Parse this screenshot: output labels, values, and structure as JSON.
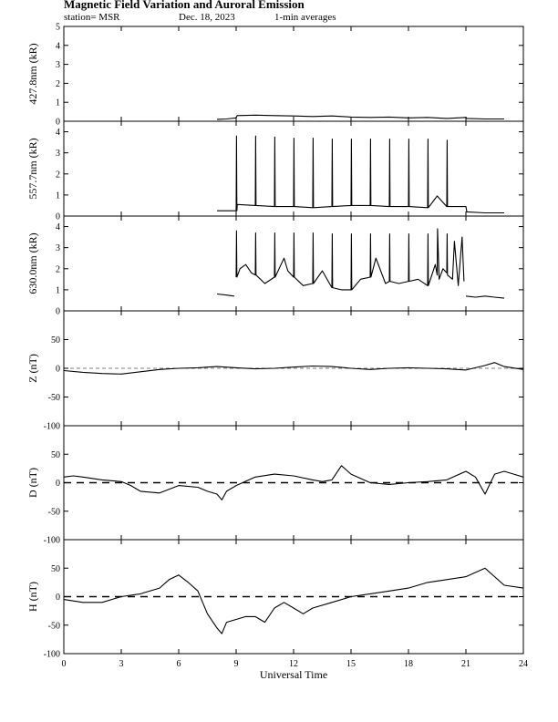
{
  "header": {
    "title": "Magnetic Field Variation and Auroral Emission",
    "station": "station= MSR",
    "date": "Dec. 18, 2023",
    "averaging": "1-min averages"
  },
  "chart_data": [
    {
      "type": "line",
      "id": "p4278",
      "ylabel": "427.8nm (kR)",
      "ylim": [
        0,
        5
      ],
      "yticks": [
        0,
        1,
        2,
        3,
        4,
        5
      ],
      "zero_dashed": false,
      "segments": [
        {
          "x": [
            8.0,
            8.5,
            9.0,
            9.05,
            10,
            11,
            12,
            13,
            14,
            15,
            16,
            17,
            18,
            19,
            20,
            21,
            21.05,
            22,
            23.0
          ],
          "y": [
            0.1,
            0.12,
            0.18,
            0.3,
            0.32,
            0.3,
            0.28,
            0.25,
            0.28,
            0.22,
            0.2,
            0.22,
            0.18,
            0.2,
            0.15,
            0.2,
            0.15,
            0.12,
            0.12
          ]
        }
      ]
    },
    {
      "type": "line",
      "id": "p5577",
      "ylabel": "557.7nm (kR)",
      "ylim": [
        0,
        4.5
      ],
      "yticks": [
        0,
        1,
        2,
        3,
        4
      ],
      "zero_dashed": false,
      "segments": [
        {
          "x": [
            8.0,
            8.5,
            9.0,
            9.02,
            9.04,
            9.06,
            10,
            10.02,
            10.04,
            11,
            11.02,
            11.04,
            12,
            12.02,
            12.04,
            13,
            13.02,
            13.04,
            14,
            14.02,
            14.04,
            15,
            15.02,
            15.04,
            16,
            16.02,
            16.04,
            17,
            17.02,
            17.04,
            18,
            18.02,
            18.04,
            19,
            19.02,
            19.04,
            19.5,
            20,
            20.02,
            20.04,
            21,
            21.05,
            22,
            23.0
          ],
          "y": [
            0.25,
            0.25,
            0.25,
            3.8,
            0.25,
            0.55,
            0.5,
            3.8,
            0.5,
            0.45,
            3.75,
            0.45,
            0.45,
            3.7,
            0.45,
            0.4,
            3.7,
            0.4,
            0.45,
            3.65,
            0.45,
            0.5,
            3.65,
            0.5,
            0.5,
            3.65,
            0.5,
            0.45,
            3.65,
            0.45,
            0.45,
            3.65,
            0.45,
            0.4,
            3.65,
            0.4,
            0.95,
            0.45,
            3.6,
            0.45,
            0.45,
            0.2,
            0.15,
            0.15
          ]
        }
      ]
    },
    {
      "type": "line",
      "id": "p6300",
      "ylabel": "630.0nm (kR)",
      "ylim": [
        0,
        4.5
      ],
      "yticks": [
        0,
        1,
        2,
        3,
        4
      ],
      "zero_dashed": false,
      "segments": [
        {
          "x": [
            8.0,
            8.5,
            8.9
          ],
          "y": [
            0.8,
            0.75,
            0.7
          ]
        },
        {
          "x": [
            9.0,
            9.02,
            9.04,
            9.2,
            9.5,
            9.8,
            10.0,
            10.02,
            10.04,
            10.5,
            11.0,
            11.02,
            11.04,
            11.5,
            11.7,
            12.0,
            12.02,
            12.04,
            12.5,
            13.0,
            13.02,
            13.04,
            13.5,
            14.0,
            14.02,
            14.04,
            14.5,
            15.0,
            15.02,
            15.04,
            15.5,
            16.0,
            16.02,
            16.04,
            16.3,
            16.8,
            17.0,
            17.02,
            17.04,
            17.5,
            18.0,
            18.02,
            18.04,
            18.5,
            19.0,
            19.02,
            19.04,
            19.4,
            19.5,
            19.52,
            19.6,
            19.8,
            20.0,
            20.02,
            20.04,
            20.3,
            20.4,
            20.6,
            20.8,
            20.9
          ],
          "y": [
            1.6,
            3.8,
            1.6,
            2.0,
            2.2,
            1.8,
            1.7,
            3.7,
            1.7,
            1.3,
            1.6,
            3.7,
            1.6,
            2.5,
            1.9,
            1.6,
            3.7,
            1.6,
            1.2,
            1.3,
            3.7,
            1.3,
            1.9,
            1.1,
            3.65,
            1.1,
            1.0,
            1.0,
            3.65,
            1.0,
            1.5,
            1.6,
            3.65,
            1.6,
            2.5,
            1.3,
            1.4,
            3.65,
            1.4,
            1.3,
            1.4,
            3.65,
            1.4,
            1.5,
            1.2,
            3.65,
            1.2,
            2.2,
            1.7,
            3.9,
            1.5,
            2.0,
            1.8,
            3.65,
            1.7,
            1.5,
            3.3,
            1.2,
            3.5,
            1.4
          ]
        },
        {
          "x": [
            21.0,
            21.5,
            22.0,
            22.5,
            23.0
          ],
          "y": [
            0.7,
            0.65,
            0.7,
            0.65,
            0.6
          ]
        }
      ]
    },
    {
      "type": "line",
      "id": "pZ",
      "ylabel": "Z (nT)",
      "ylim": [
        -100,
        100
      ],
      "yticks": [
        -100,
        -50,
        0,
        50
      ],
      "zero_dashed": true,
      "zero_dash_thin": true,
      "segments": [
        {
          "x": [
            0,
            1,
            2,
            3,
            4,
            5,
            6,
            7,
            7.5,
            8,
            9,
            10,
            11,
            12,
            13,
            14,
            15,
            16,
            17,
            18,
            19,
            20,
            21,
            22,
            22.5,
            23,
            24
          ],
          "y": [
            -4,
            -7,
            -9,
            -10,
            -6,
            -2,
            0,
            1,
            2,
            3,
            1,
            -1,
            0,
            2,
            4,
            3,
            0,
            -2,
            0,
            1,
            0,
            -1,
            -3,
            5,
            10,
            3,
            -2
          ]
        }
      ]
    },
    {
      "type": "line",
      "id": "pD",
      "ylabel": "D (nT)",
      "ylim": [
        -100,
        100
      ],
      "yticks": [
        -100,
        -50,
        0,
        50
      ],
      "zero_dashed": true,
      "segments": [
        {
          "x": [
            0,
            0.5,
            1,
            2,
            3,
            3.5,
            4,
            5,
            6,
            7,
            7.5,
            8,
            8.25,
            8.5,
            9,
            10,
            11,
            12,
            13,
            13.5,
            14,
            14.5,
            15,
            16,
            17,
            18,
            19,
            20,
            21,
            21.5,
            22,
            22.5,
            23,
            23.5,
            24
          ],
          "y": [
            10,
            12,
            10,
            5,
            2,
            -5,
            -15,
            -18,
            -5,
            -8,
            -15,
            -20,
            -30,
            -15,
            -5,
            10,
            15,
            12,
            5,
            2,
            5,
            30,
            15,
            0,
            -3,
            0,
            2,
            5,
            20,
            10,
            -20,
            15,
            20,
            15,
            10
          ]
        }
      ]
    },
    {
      "type": "line",
      "id": "pH",
      "ylabel": "H (nT)",
      "ylim": [
        -100,
        100
      ],
      "yticks": [
        -100,
        -50,
        0,
        50
      ],
      "zero_dashed": true,
      "segments": [
        {
          "x": [
            0,
            1,
            2,
            2.5,
            3,
            4,
            5,
            5.5,
            6,
            6.5,
            7,
            7.5,
            8,
            8.25,
            8.5,
            9,
            9.5,
            10,
            10.5,
            11,
            11.5,
            12,
            12.5,
            13,
            14,
            15,
            16,
            17,
            18,
            19,
            20,
            21,
            22,
            22.5,
            23,
            24
          ],
          "y": [
            -5,
            -10,
            -10,
            -5,
            0,
            5,
            15,
            30,
            38,
            25,
            10,
            -30,
            -55,
            -65,
            -45,
            -40,
            -35,
            -35,
            -45,
            -20,
            -10,
            -20,
            -30,
            -20,
            -10,
            0,
            5,
            10,
            15,
            25,
            30,
            35,
            50,
            35,
            20,
            15
          ]
        }
      ]
    }
  ],
  "xaxis": {
    "xlabel": "Universal Time",
    "xlim": [
      0,
      24
    ],
    "ticks": [
      0,
      3,
      6,
      9,
      12,
      15,
      18,
      21,
      24
    ]
  }
}
